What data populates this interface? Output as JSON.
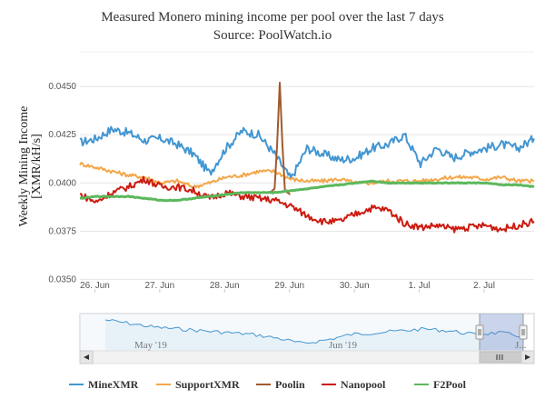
{
  "chart_data": {
    "type": "line",
    "title": "Measured Monero mining income per pool over the last 7 days",
    "subtitle": "Source: PoolWatch.io",
    "ylabel_line1": "Weekly Mining Income",
    "ylabel_line2": "[XMR/kH/s]",
    "xlabel": "",
    "x_range": [
      0,
      7
    ],
    "ylim": [
      0.0345,
      0.0468
    ],
    "y_ticks": [
      {
        "value": 0.035,
        "label": "0.0350"
      },
      {
        "value": 0.0375,
        "label": "0.0375"
      },
      {
        "value": 0.04,
        "label": "0.0400"
      },
      {
        "value": 0.0425,
        "label": "0.0425"
      },
      {
        "value": 0.045,
        "label": "0.0450"
      }
    ],
    "x_ticks": [
      {
        "value": 0.23,
        "label": "26. Jun"
      },
      {
        "value": 1.23,
        "label": "27. Jun"
      },
      {
        "value": 2.23,
        "label": "28. Jun"
      },
      {
        "value": 3.23,
        "label": "29. Jun"
      },
      {
        "value": 4.23,
        "label": "30. Jun"
      },
      {
        "value": 5.23,
        "label": "1. Jul"
      },
      {
        "value": 6.23,
        "label": "2. Jul"
      }
    ],
    "grid": true,
    "legend_position": "bottom",
    "series": [
      {
        "name": "MineXMR",
        "color": "#4396d1",
        "x": [
          0,
          0.25,
          0.5,
          0.75,
          1,
          1.25,
          1.5,
          1.75,
          2,
          2.25,
          2.5,
          2.75,
          3,
          3.25,
          3.5,
          3.75,
          4,
          4.25,
          4.5,
          4.75,
          5,
          5.25,
          5.5,
          5.75,
          6,
          6.25,
          6.5,
          6.75,
          7
        ],
        "y": [
          0.0421,
          0.0423,
          0.0428,
          0.0426,
          0.0422,
          0.0423,
          0.042,
          0.0415,
          0.0405,
          0.0418,
          0.0427,
          0.0425,
          0.0415,
          0.0402,
          0.0418,
          0.0415,
          0.0412,
          0.0413,
          0.0418,
          0.042,
          0.0425,
          0.041,
          0.0418,
          0.0413,
          0.0416,
          0.0418,
          0.042,
          0.0418,
          0.0423
        ]
      },
      {
        "name": "SupportXMR",
        "color": "#f3a74a",
        "x": [
          0,
          0.25,
          0.5,
          0.75,
          1,
          1.25,
          1.5,
          1.75,
          2,
          2.25,
          2.5,
          2.75,
          3,
          3.25,
          3.5,
          3.75,
          4,
          4.25,
          4.5,
          4.75,
          5,
          5.25,
          5.5,
          5.75,
          6,
          6.25,
          6.5,
          6.75,
          7
        ],
        "y": [
          0.041,
          0.0408,
          0.0406,
          0.0404,
          0.0403,
          0.04,
          0.0401,
          0.0398,
          0.04,
          0.0403,
          0.0404,
          0.0406,
          0.0406,
          0.0402,
          0.0401,
          0.0401,
          0.0402,
          0.04,
          0.04,
          0.0401,
          0.0401,
          0.0401,
          0.0402,
          0.0403,
          0.0403,
          0.0402,
          0.0403,
          0.0401,
          0.0401
        ]
      },
      {
        "name": "Poolin",
        "color": "#a05a2c",
        "x": [
          2.93,
          3.0,
          3.04,
          3.08,
          3.12,
          3.16,
          3.24
        ],
        "y": [
          0.0395,
          0.0397,
          0.042,
          0.0452,
          0.042,
          0.0396,
          0.0394
        ]
      },
      {
        "name": "Nanopool",
        "color": "#cc1b10",
        "x": [
          0,
          0.25,
          0.5,
          0.75,
          1,
          1.25,
          1.5,
          1.75,
          2,
          2.25,
          2.5,
          2.75,
          3,
          3.25,
          3.5,
          3.75,
          4,
          4.25,
          4.5,
          4.75,
          5,
          5.25,
          5.5,
          5.75,
          6,
          6.25,
          6.5,
          6.75,
          7
        ],
        "y": [
          0.0394,
          0.039,
          0.0395,
          0.0398,
          0.0402,
          0.0398,
          0.0398,
          0.0396,
          0.0392,
          0.0395,
          0.0393,
          0.0392,
          0.0391,
          0.0388,
          0.0383,
          0.038,
          0.038,
          0.0384,
          0.0387,
          0.0386,
          0.0379,
          0.0377,
          0.0378,
          0.0376,
          0.0377,
          0.0378,
          0.0376,
          0.0378,
          0.038
        ]
      },
      {
        "name": "F2Pool",
        "color": "#5cb85c",
        "x": [
          0,
          0.25,
          0.5,
          0.75,
          1,
          1.25,
          1.5,
          1.75,
          2,
          2.25,
          2.5,
          2.75,
          3,
          3.25,
          3.5,
          3.75,
          4,
          4.25,
          4.5,
          4.75,
          5,
          5.25,
          5.5,
          5.75,
          6,
          6.25,
          6.5,
          6.75,
          7
        ],
        "y": [
          0.0392,
          0.0393,
          0.0393,
          0.0393,
          0.0392,
          0.0391,
          0.0391,
          0.0392,
          0.0393,
          0.0394,
          0.0395,
          0.0395,
          0.0395,
          0.0396,
          0.0397,
          0.0398,
          0.0399,
          0.04,
          0.0401,
          0.04,
          0.04,
          0.04,
          0.04,
          0.04,
          0.04,
          0.04,
          0.0399,
          0.0399,
          0.0398
        ]
      }
    ]
  },
  "navigator": {
    "labels": [
      "May '19",
      "Jun '19",
      "J..."
    ],
    "scroll_icon": "scroll-grip-icon",
    "handle_icon": "grip-handle-icon"
  }
}
